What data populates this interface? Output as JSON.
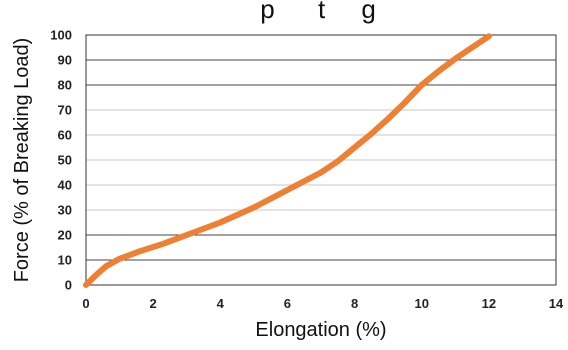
{
  "chart_data": {
    "type": "line",
    "title_partial": "p      t     g",
    "xlabel": "Elongation (%)",
    "ylabel": "Force (% of Breaking Load)",
    "xlim": [
      0,
      14
    ],
    "ylim": [
      0,
      100
    ],
    "x_ticks": [
      0,
      2,
      4,
      6,
      8,
      10,
      12,
      14
    ],
    "y_ticks": [
      0,
      10,
      20,
      30,
      40,
      50,
      60,
      70,
      80,
      90,
      100
    ],
    "grid": "horizontal",
    "series": [
      {
        "color": "#EF7F32",
        "x": [
          0,
          0.3,
          0.6,
          1.0,
          1.6,
          2.3,
          3.0,
          4.0,
          5.0,
          6.0,
          7.0,
          7.5,
          8.0,
          8.5,
          9.0,
          9.5,
          10.0,
          10.5,
          11.0,
          11.5,
          12.0
        ],
        "y": [
          0,
          4,
          7.5,
          10.5,
          13.5,
          16.5,
          20,
          25,
          31,
          38,
          45,
          49.5,
          55,
          60.5,
          66.5,
          73,
          80,
          85.5,
          90.5,
          95,
          99.5
        ]
      }
    ]
  }
}
